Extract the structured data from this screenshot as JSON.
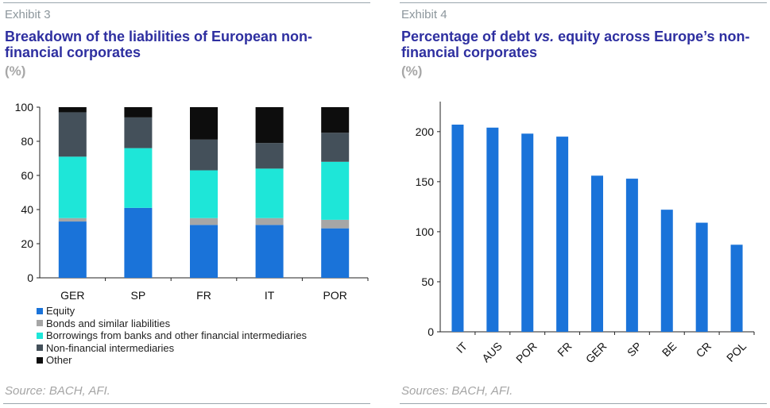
{
  "exhibit3": {
    "label": "Exhibit 3",
    "title": "Breakdown of the liabilities of European non-financial corporates",
    "unit": "(%)",
    "source": "Source: BACH, AFI."
  },
  "exhibit4": {
    "label": "Exhibit 4",
    "title_part1": "Percentage of debt ",
    "title_italic": "vs.",
    "title_part2": " equity across Europe’s non-financial corporates",
    "unit": "(%)",
    "source": "Sources: BACH, AFI."
  },
  "colors": {
    "equity": "#1a73d9",
    "bonds": "#a6a6a6",
    "borrowings": "#1ee6d8",
    "nonfinancial": "#44505a",
    "other": "#0d0d0d",
    "bar": "#1a73d9"
  },
  "chart_data": [
    {
      "type": "bar",
      "stacked": true,
      "categories": [
        "GER",
        "SP",
        "FR",
        "IT",
        "POR"
      ],
      "ylim": [
        0,
        100
      ],
      "yticks": [
        0,
        20,
        40,
        60,
        80,
        100
      ],
      "legend_position": "bottom",
      "series": [
        {
          "name": "Equity",
          "color_key": "equity",
          "values": [
            33,
            41,
            31,
            31,
            29
          ]
        },
        {
          "name": "Bonds and similar liabilities",
          "color_key": "bonds",
          "values": [
            2,
            0,
            4,
            4,
            5
          ]
        },
        {
          "name": "Borrowings from banks and other financial intermediaries",
          "color_key": "borrowings",
          "values": [
            36,
            35,
            28,
            29,
            34
          ]
        },
        {
          "name": "Non-financial intermediaries",
          "color_key": "nonfinancial",
          "values": [
            26,
            18,
            18,
            15,
            17
          ]
        },
        {
          "name": "Other",
          "color_key": "other",
          "values": [
            3,
            6,
            19,
            21,
            15
          ]
        }
      ]
    },
    {
      "type": "bar",
      "categories": [
        "IT",
        "AUS",
        "POR",
        "FR",
        "GER",
        "SP",
        "BE",
        "CR",
        "POL"
      ],
      "values": [
        207,
        204,
        198,
        195,
        156,
        153,
        122,
        109,
        87
      ],
      "ylim": [
        0,
        230
      ],
      "yticks": [
        0,
        50,
        100,
        150,
        200
      ]
    }
  ]
}
